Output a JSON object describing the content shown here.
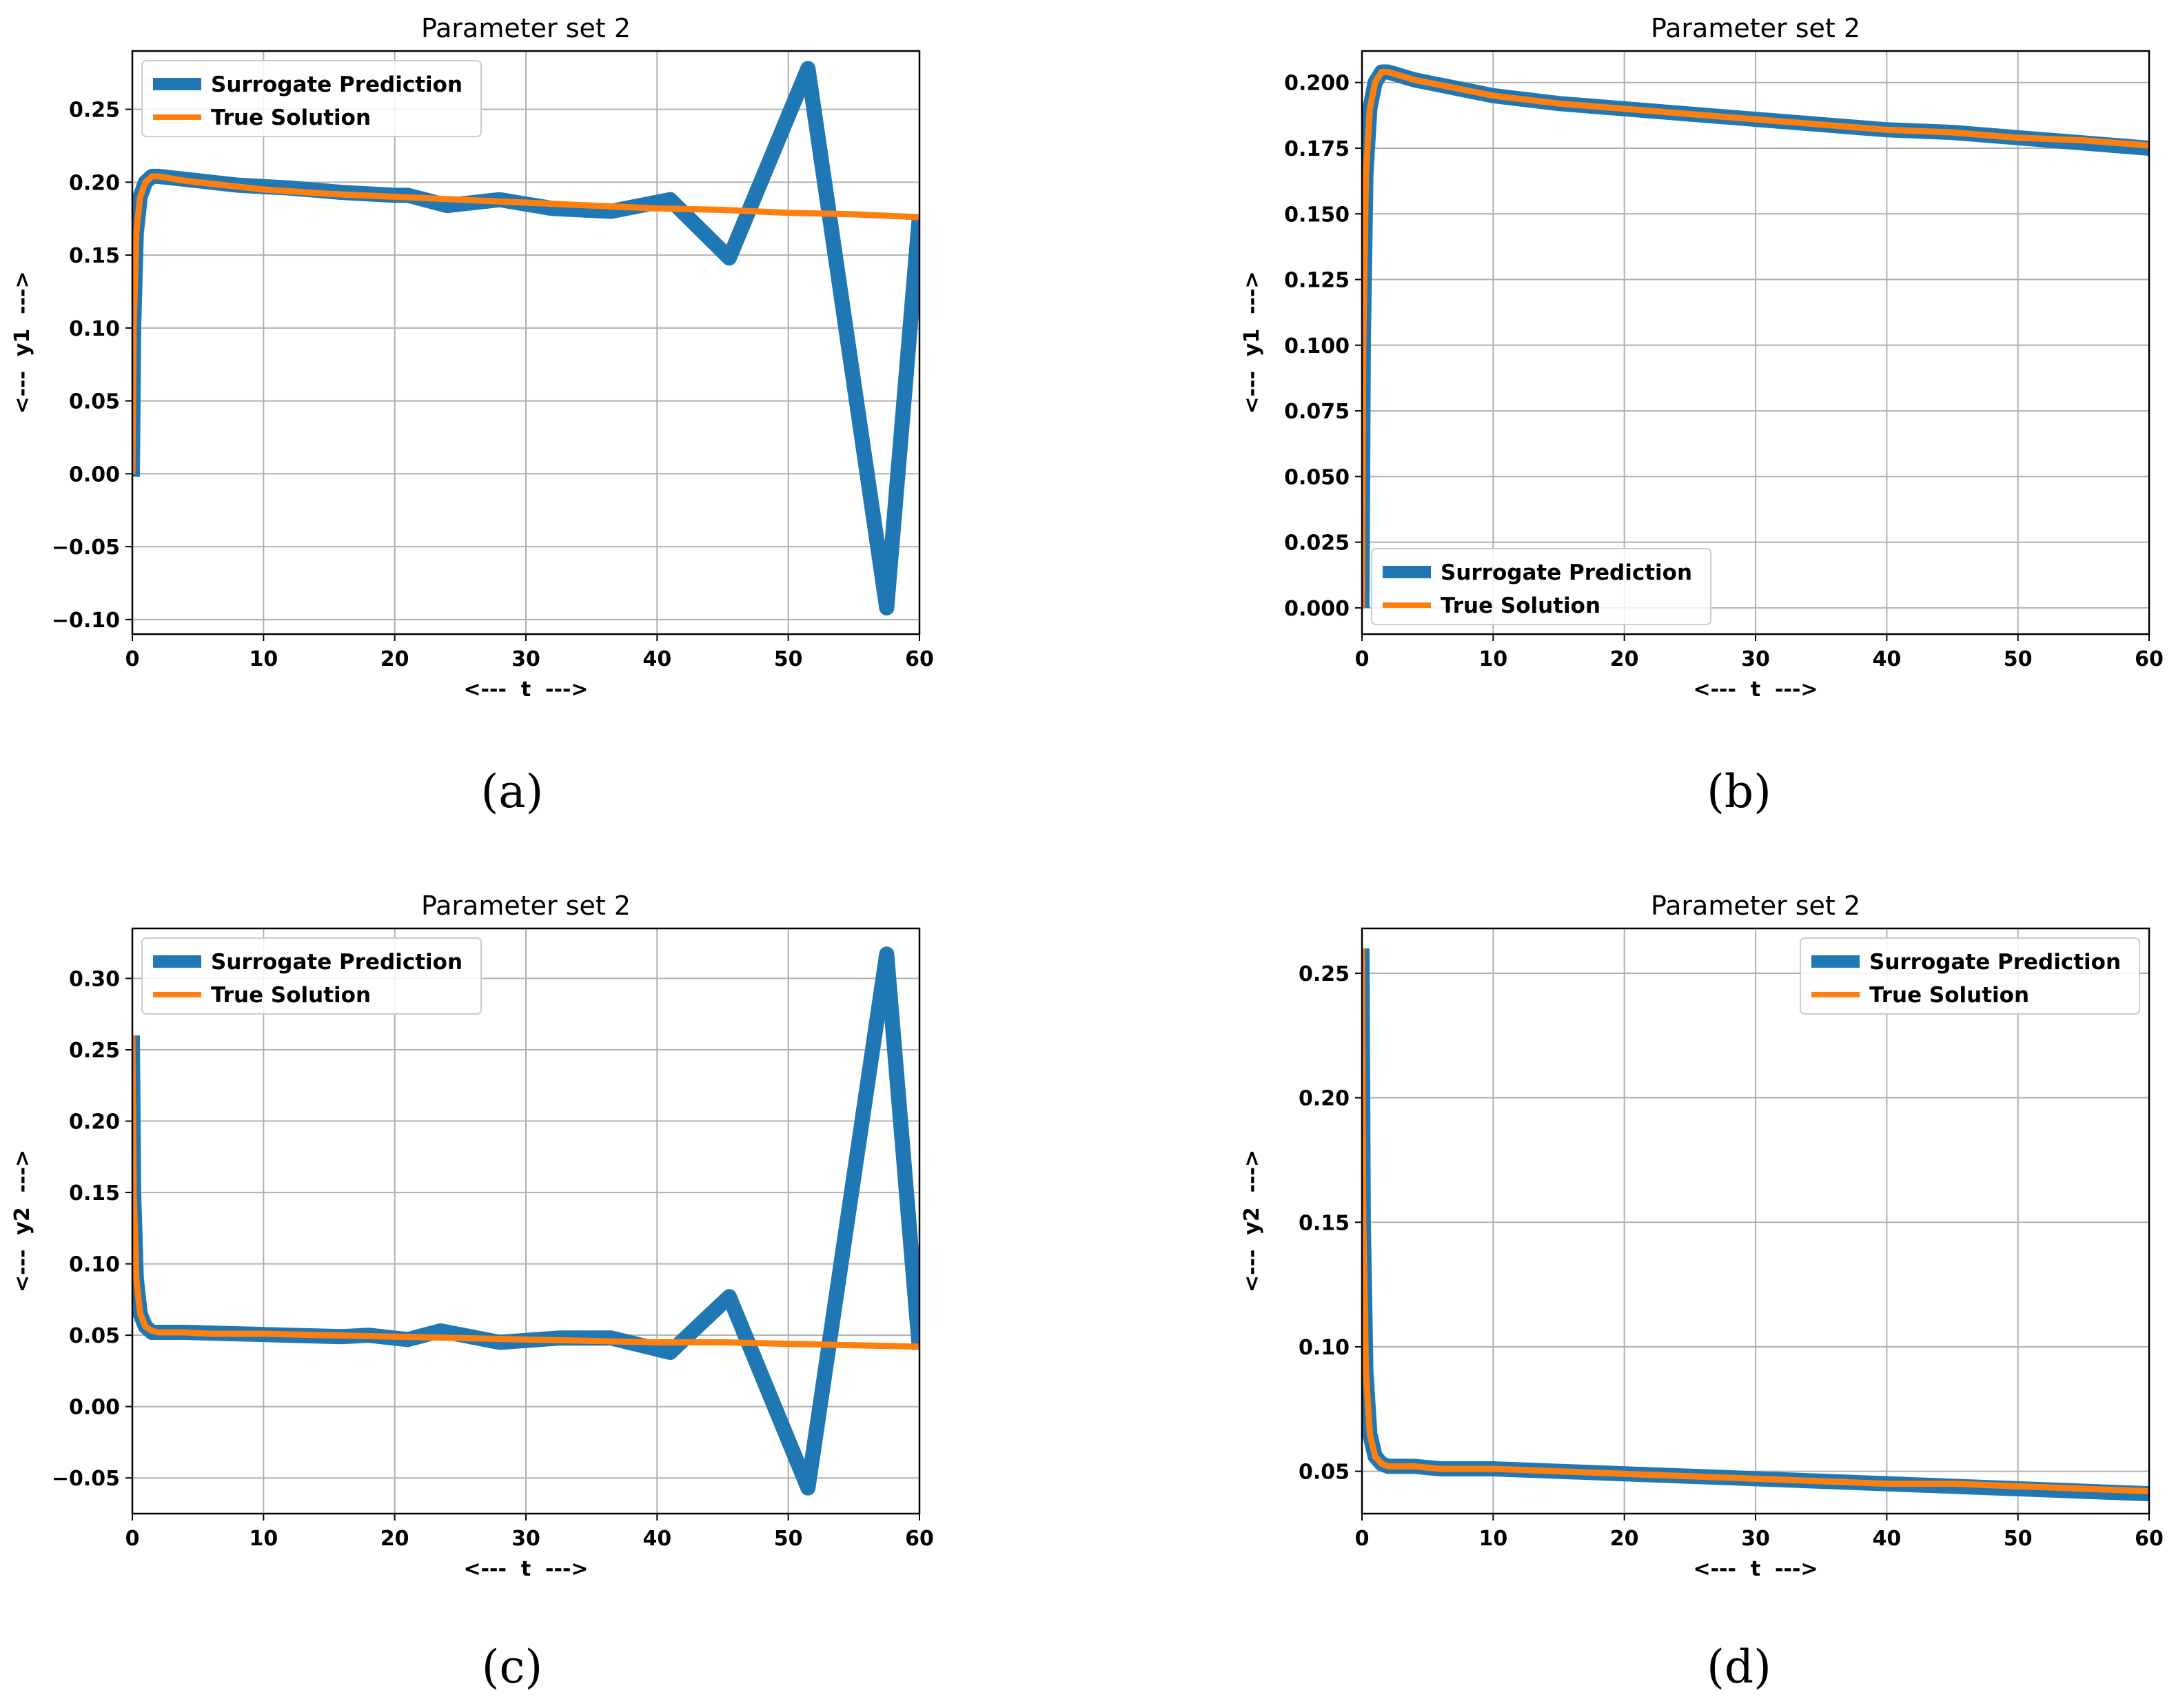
{
  "chart_data": [
    {
      "id": "a",
      "type": "line",
      "caption": "(a)",
      "title": "Parameter set 2",
      "xlabel": "<---  t  --->",
      "ylabel": "<---  y1  --->",
      "xlim": [
        0,
        60
      ],
      "ylim": [
        -0.11,
        0.29
      ],
      "xticks": [
        0,
        10,
        20,
        30,
        40,
        50,
        60
      ],
      "xtick_labels": [
        "0",
        "10",
        "20",
        "30",
        "40",
        "50",
        "60"
      ],
      "yticks": [
        -0.1,
        -0.05,
        0.0,
        0.05,
        0.1,
        0.15,
        0.2,
        0.25
      ],
      "ytick_labels": [
        "−0.10",
        "−0.05",
        "0.00",
        "0.05",
        "0.10",
        "0.15",
        "0.20",
        "0.25"
      ],
      "grid": true,
      "legend_position": "upper-left",
      "series": [
        {
          "name": "Surrogate Prediction",
          "color": "#1f77b4",
          "style": "thick",
          "x": [
            0,
            0.1,
            0.3,
            0.6,
            1.0,
            1.5,
            2,
            4,
            8,
            12,
            16,
            20,
            21,
            24,
            28,
            32,
            36.5,
            41,
            45.5,
            51.5,
            57.5,
            60
          ],
          "y": [
            -0.002,
            0.1,
            0.165,
            0.19,
            0.2,
            0.204,
            0.204,
            0.202,
            0.198,
            0.196,
            0.193,
            0.191,
            0.191,
            0.184,
            0.188,
            0.182,
            0.18,
            0.188,
            0.148,
            0.278,
            -0.092,
            0.177
          ]
        },
        {
          "name": "True Solution",
          "color": "#ff7f0e",
          "style": "thin",
          "x": [
            0,
            0.1,
            0.3,
            0.6,
            1.0,
            1.5,
            2,
            4,
            6,
            8,
            10,
            15,
            20,
            25,
            30,
            35,
            40,
            45,
            50,
            55,
            60
          ],
          "y": [
            0.0,
            0.1,
            0.165,
            0.19,
            0.2,
            0.204,
            0.204,
            0.201,
            0.199,
            0.197,
            0.195,
            0.192,
            0.19,
            0.188,
            0.186,
            0.184,
            0.182,
            0.181,
            0.179,
            0.178,
            0.176
          ]
        }
      ]
    },
    {
      "id": "b",
      "type": "line",
      "caption": "(b)",
      "title": "Parameter set 2",
      "xlabel": "<---  t  --->",
      "ylabel": "<---  y1  --->",
      "xlim": [
        0,
        60
      ],
      "ylim": [
        -0.01,
        0.212
      ],
      "xticks": [
        0,
        10,
        20,
        30,
        40,
        50,
        60
      ],
      "xtick_labels": [
        "0",
        "10",
        "20",
        "30",
        "40",
        "50",
        "60"
      ],
      "yticks": [
        0.0,
        0.025,
        0.05,
        0.075,
        0.1,
        0.125,
        0.15,
        0.175,
        0.2
      ],
      "ytick_labels": [
        "0.000",
        "0.025",
        "0.050",
        "0.075",
        "0.100",
        "0.125",
        "0.150",
        "0.175",
        "0.200"
      ],
      "grid": true,
      "legend_position": "lower-left",
      "series": [
        {
          "name": "Surrogate Prediction",
          "color": "#1f77b4",
          "style": "thick",
          "x": [
            0,
            0.1,
            0.3,
            0.6,
            1.0,
            1.5,
            2,
            4,
            6,
            8,
            10,
            15,
            20,
            25,
            30,
            35,
            40,
            45,
            50,
            55,
            60
          ],
          "y": [
            0.0,
            0.1,
            0.165,
            0.19,
            0.2,
            0.204,
            0.204,
            0.201,
            0.199,
            0.197,
            0.195,
            0.192,
            0.19,
            0.188,
            0.186,
            0.184,
            0.182,
            0.181,
            0.179,
            0.177,
            0.175
          ]
        },
        {
          "name": "True Solution",
          "color": "#ff7f0e",
          "style": "thin",
          "x": [
            0,
            0.1,
            0.3,
            0.6,
            1.0,
            1.5,
            2,
            4,
            6,
            8,
            10,
            15,
            20,
            25,
            30,
            35,
            40,
            45,
            50,
            55,
            60
          ],
          "y": [
            0.0,
            0.1,
            0.165,
            0.19,
            0.2,
            0.204,
            0.204,
            0.201,
            0.199,
            0.197,
            0.195,
            0.192,
            0.19,
            0.188,
            0.186,
            0.184,
            0.182,
            0.181,
            0.179,
            0.178,
            0.176
          ]
        }
      ]
    },
    {
      "id": "c",
      "type": "line",
      "caption": "(c)",
      "title": "Parameter set 2",
      "xlabel": "<---  t  --->",
      "ylabel": "<---  y2  --->",
      "xlim": [
        0,
        60
      ],
      "ylim": [
        -0.075,
        0.335
      ],
      "xticks": [
        0,
        10,
        20,
        30,
        40,
        50,
        60
      ],
      "xtick_labels": [
        "0",
        "10",
        "20",
        "30",
        "40",
        "50",
        "60"
      ],
      "yticks": [
        -0.05,
        0.0,
        0.05,
        0.1,
        0.15,
        0.2,
        0.25,
        0.3
      ],
      "ytick_labels": [
        "−0.05",
        "0.00",
        "0.05",
        "0.10",
        "0.15",
        "0.20",
        "0.25",
        "0.30"
      ],
      "grid": true,
      "legend_position": "upper-left",
      "series": [
        {
          "name": "Surrogate Prediction",
          "color": "#1f77b4",
          "style": "thick",
          "x": [
            0,
            0.1,
            0.3,
            0.6,
            1.0,
            1.5,
            2,
            4,
            8,
            12,
            16,
            18,
            21,
            23.5,
            28,
            32.5,
            36.5,
            41,
            45.5,
            51.5,
            57.5,
            60
          ],
          "y": [
            0.26,
            0.15,
            0.09,
            0.065,
            0.056,
            0.052,
            0.052,
            0.052,
            0.051,
            0.05,
            0.049,
            0.05,
            0.047,
            0.053,
            0.045,
            0.048,
            0.048,
            0.038,
            0.077,
            -0.057,
            0.317,
            0.04
          ]
        },
        {
          "name": "True Solution",
          "color": "#ff7f0e",
          "style": "thin",
          "x": [
            0,
            0.1,
            0.3,
            0.6,
            1.0,
            1.5,
            2,
            4,
            6,
            10,
            15,
            20,
            25,
            30,
            35,
            40,
            45,
            50,
            55,
            60
          ],
          "y": [
            0.26,
            0.15,
            0.09,
            0.065,
            0.056,
            0.053,
            0.052,
            0.052,
            0.051,
            0.051,
            0.05,
            0.049,
            0.048,
            0.047,
            0.046,
            0.045,
            0.045,
            0.044,
            0.043,
            0.042
          ]
        }
      ]
    },
    {
      "id": "d",
      "type": "line",
      "caption": "(d)",
      "title": "Parameter set 2",
      "xlabel": "<---  t  --->",
      "ylabel": "<---  y2  --->",
      "xlim": [
        0,
        60
      ],
      "ylim": [
        0.033,
        0.268
      ],
      "xticks": [
        0,
        10,
        20,
        30,
        40,
        50,
        60
      ],
      "xtick_labels": [
        "0",
        "10",
        "20",
        "30",
        "40",
        "50",
        "60"
      ],
      "yticks": [
        0.05,
        0.1,
        0.15,
        0.2,
        0.25
      ],
      "ytick_labels": [
        "0.05",
        "0.10",
        "0.15",
        "0.20",
        "0.25"
      ],
      "grid": true,
      "legend_position": "upper-right",
      "series": [
        {
          "name": "Surrogate Prediction",
          "color": "#1f77b4",
          "style": "thick",
          "x": [
            0,
            0.1,
            0.3,
            0.6,
            1.0,
            1.5,
            2,
            4,
            6,
            10,
            15,
            20,
            25,
            30,
            35,
            40,
            45,
            50,
            55,
            60
          ],
          "y": [
            0.26,
            0.15,
            0.09,
            0.065,
            0.056,
            0.053,
            0.052,
            0.052,
            0.051,
            0.051,
            0.05,
            0.049,
            0.048,
            0.047,
            0.046,
            0.045,
            0.044,
            0.043,
            0.042,
            0.041
          ]
        },
        {
          "name": "True Solution",
          "color": "#ff7f0e",
          "style": "thin",
          "x": [
            0,
            0.1,
            0.3,
            0.6,
            1.0,
            1.5,
            2,
            4,
            6,
            10,
            15,
            20,
            25,
            30,
            35,
            40,
            45,
            50,
            55,
            60
          ],
          "y": [
            0.26,
            0.15,
            0.09,
            0.065,
            0.056,
            0.053,
            0.052,
            0.052,
            0.051,
            0.051,
            0.05,
            0.049,
            0.048,
            0.047,
            0.046,
            0.045,
            0.045,
            0.044,
            0.043,
            0.042
          ]
        }
      ]
    }
  ]
}
